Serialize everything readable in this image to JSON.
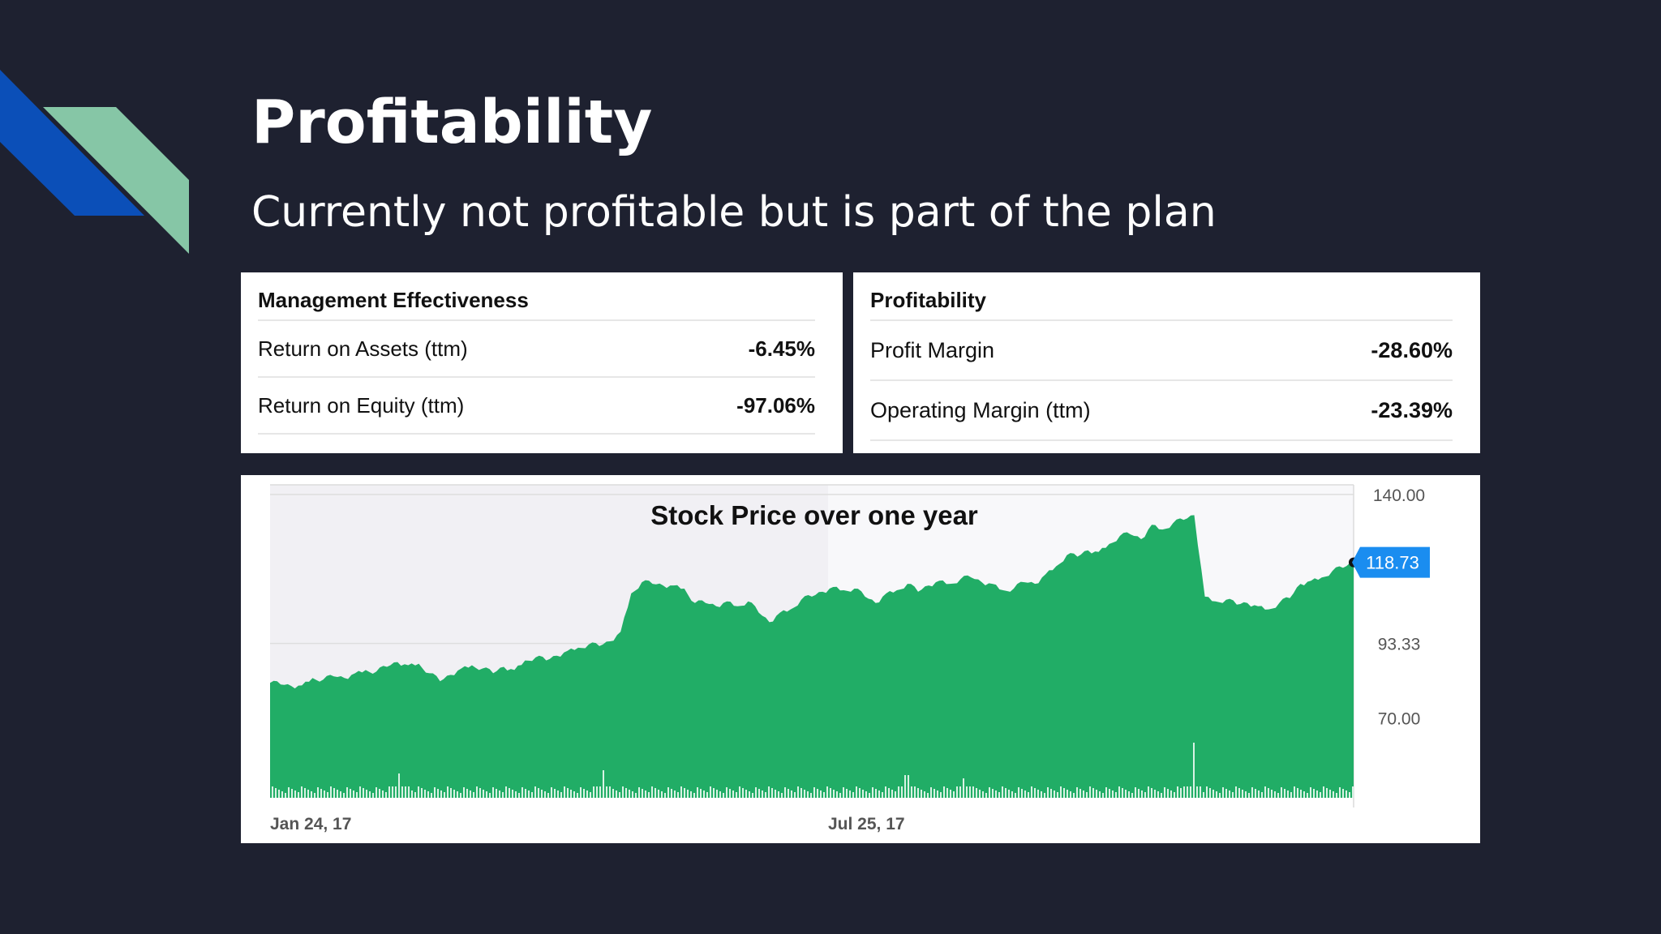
{
  "slide": {
    "title": "Profitability",
    "subtitle": "Currently not profitable but is part of the plan"
  },
  "management_table": {
    "heading": "Management Effectiveness",
    "rows": [
      {
        "label": "Return on Assets (ttm)",
        "value": "-6.45%"
      },
      {
        "label": "Return on Equity (ttm)",
        "value": "-97.06%"
      }
    ]
  },
  "profitability_table": {
    "heading": "Profitability",
    "rows": [
      {
        "label": "Profit Margin",
        "value": "-28.60%"
      },
      {
        "label": "Operating Margin (ttm)",
        "value": "-23.39%"
      }
    ]
  },
  "colors": {
    "background": "#1e2130",
    "deco_blue": "#0b4fb8",
    "deco_mint": "#86c6a6",
    "area_fill": "#21ad66",
    "price_badge": "#1a8df0"
  },
  "chart_data": {
    "type": "area",
    "title": "Stock Price over one year",
    "x_tick_labels": [
      "Jan 24, 17",
      "Jul 25, 17"
    ],
    "y_tick_labels": [
      "140.00",
      "93.33",
      "70.00"
    ],
    "y_ticks": [
      140,
      93.33,
      70
    ],
    "ylim": [
      45,
      143
    ],
    "current_price_label": "118.73",
    "current_price": 118.73,
    "grid": true,
    "series": [
      {
        "name": "Price",
        "values": [
          81,
          80.5,
          80,
          80.2,
          82.5,
          82,
          83,
          82.5,
          84,
          85,
          84.5,
          86,
          87.5,
          86.5,
          87,
          84,
          81.5,
          83.5,
          85.5,
          86.5,
          85.5,
          84,
          86,
          85,
          88,
          89,
          88,
          89.5,
          91,
          92,
          93,
          92.5,
          94,
          97,
          109,
          112.5,
          112,
          111.5,
          111.5,
          110.5,
          106,
          106,
          105,
          106.5,
          105,
          106.5,
          103,
          100,
          103,
          104,
          107,
          108,
          109.5,
          111,
          110,
          110.5,
          108,
          106,
          109,
          110,
          112,
          109.5,
          111.5,
          113,
          112,
          113.5,
          114,
          112.5,
          112,
          110,
          110.5,
          112.5,
          112,
          115,
          117.5,
          121,
          120.5,
          122.5,
          122,
          124.5,
          127,
          127.5,
          126,
          130.5,
          129,
          131,
          132,
          133.5,
          108,
          106.5,
          107,
          105.5,
          106,
          105,
          104,
          106,
          107.5,
          112,
          113,
          114,
          116,
          117,
          118.73
        ]
      }
    ],
    "volume_spikes": [
      "Mar 17",
      "Jun 17",
      "Sep 17",
      "Oct 17",
      "Nov 17"
    ]
  }
}
